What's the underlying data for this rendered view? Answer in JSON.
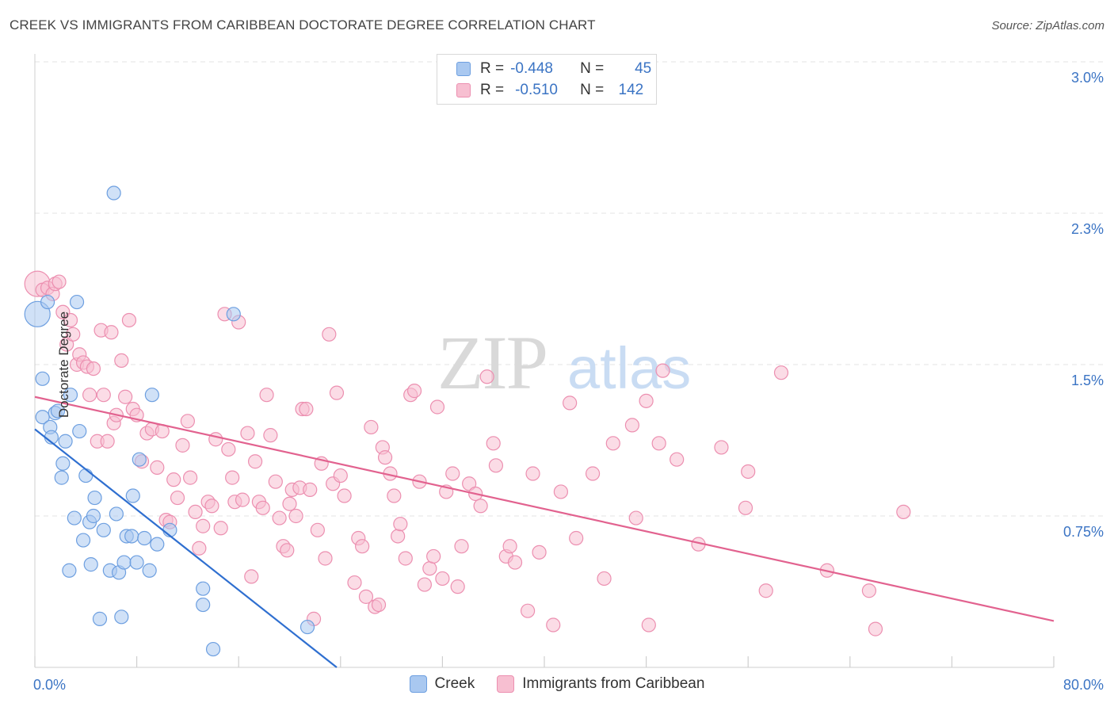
{
  "title": "CREEK VS IMMIGRANTS FROM CARIBBEAN DOCTORATE DEGREE CORRELATION CHART",
  "source": "Source: ZipAtlas.com",
  "watermark": {
    "zip": "ZIP",
    "atlas": "atlas"
  },
  "legend": {
    "r_label": "R =",
    "n_label": "N =",
    "creek": {
      "r": "-0.448",
      "n": "45"
    },
    "caribbean": {
      "r": "-0.510",
      "n": "142"
    }
  },
  "colors": {
    "creek_fill": "#a9c8f0",
    "creek_stroke": "#6d9fe0",
    "creek_line": "#2f6fd0",
    "carib_fill": "#f7bfd1",
    "carib_stroke": "#ec8fb0",
    "carib_line": "#e2628f",
    "tick_label": "#3b74c4",
    "grid": "#e3e3e3"
  },
  "chart_data": {
    "type": "scatter",
    "title": "CREEK VS IMMIGRANTS FROM CARIBBEAN DOCTORATE DEGREE CORRELATION CHART",
    "xlabel": "",
    "ylabel": "Doctorate Degree",
    "xlim": [
      0,
      80
    ],
    "ylim": [
      0,
      3.0
    ],
    "x_tick_labels": [
      "0.0%",
      "80.0%"
    ],
    "y_ticks": [
      0.75,
      1.5,
      2.25,
      3.0
    ],
    "y_tick_labels": [
      "0.75%",
      "1.5%",
      "2.3%",
      "3.0%"
    ],
    "grid": "dashed horizontal",
    "legend_placement": "top-center",
    "series": [
      {
        "name": "Creek",
        "r": -0.448,
        "n": 45,
        "trend": {
          "x": [
            0,
            23.7
          ],
          "y": [
            1.18,
            0.0
          ]
        },
        "points": [
          [
            0.2,
            1.75
          ],
          [
            0.6,
            1.43
          ],
          [
            0.6,
            1.24
          ],
          [
            1.0,
            1.81
          ],
          [
            1.2,
            1.19
          ],
          [
            1.3,
            1.14
          ],
          [
            1.6,
            1.26
          ],
          [
            1.8,
            1.27
          ],
          [
            2.1,
            0.94
          ],
          [
            2.2,
            1.01
          ],
          [
            2.4,
            1.12
          ],
          [
            2.7,
            0.48
          ],
          [
            2.8,
            1.35
          ],
          [
            3.1,
            0.74
          ],
          [
            3.3,
            1.81
          ],
          [
            3.5,
            1.17
          ],
          [
            3.8,
            0.63
          ],
          [
            4.0,
            0.95
          ],
          [
            4.3,
            0.72
          ],
          [
            4.4,
            0.51
          ],
          [
            4.6,
            0.75
          ],
          [
            4.7,
            0.84
          ],
          [
            5.1,
            0.24
          ],
          [
            5.4,
            0.68
          ],
          [
            5.9,
            0.48
          ],
          [
            6.2,
            2.35
          ],
          [
            6.4,
            0.76
          ],
          [
            6.6,
            0.47
          ],
          [
            6.8,
            0.25
          ],
          [
            7.0,
            0.52
          ],
          [
            7.2,
            0.65
          ],
          [
            7.6,
            0.65
          ],
          [
            7.7,
            0.85
          ],
          [
            8.0,
            0.52
          ],
          [
            8.2,
            1.03
          ],
          [
            8.6,
            0.64
          ],
          [
            9.0,
            0.48
          ],
          [
            9.2,
            1.35
          ],
          [
            9.6,
            0.61
          ],
          [
            10.6,
            0.68
          ],
          [
            13.2,
            0.31
          ],
          [
            13.2,
            0.39
          ],
          [
            14.0,
            0.09
          ],
          [
            15.6,
            1.75
          ],
          [
            21.4,
            0.2
          ]
        ]
      },
      {
        "name": "Immigrants from Caribbean",
        "r": -0.51,
        "n": 142,
        "trend": {
          "x": [
            0,
            80
          ],
          "y": [
            1.34,
            0.23
          ]
        },
        "points": [
          [
            0.2,
            1.9
          ],
          [
            0.6,
            1.87
          ],
          [
            1.0,
            1.88
          ],
          [
            1.4,
            1.85
          ],
          [
            1.6,
            1.9
          ],
          [
            1.9,
            1.91
          ],
          [
            2.2,
            1.76
          ],
          [
            2.5,
            1.6
          ],
          [
            2.8,
            1.72
          ],
          [
            3.0,
            1.65
          ],
          [
            3.3,
            1.5
          ],
          [
            3.5,
            1.55
          ],
          [
            3.8,
            1.51
          ],
          [
            4.1,
            1.49
          ],
          [
            4.3,
            1.35
          ],
          [
            4.6,
            1.48
          ],
          [
            4.9,
            1.12
          ],
          [
            5.2,
            1.67
          ],
          [
            5.4,
            1.35
          ],
          [
            5.7,
            1.12
          ],
          [
            6.0,
            1.66
          ],
          [
            6.2,
            1.21
          ],
          [
            6.4,
            1.25
          ],
          [
            6.8,
            1.52
          ],
          [
            7.1,
            1.34
          ],
          [
            7.4,
            1.72
          ],
          [
            7.7,
            1.28
          ],
          [
            8.0,
            1.25
          ],
          [
            8.4,
            1.02
          ],
          [
            8.8,
            1.16
          ],
          [
            9.2,
            1.18
          ],
          [
            9.6,
            0.99
          ],
          [
            10.0,
            1.17
          ],
          [
            10.3,
            0.73
          ],
          [
            10.6,
            0.72
          ],
          [
            10.9,
            0.93
          ],
          [
            11.2,
            0.84
          ],
          [
            11.6,
            1.1
          ],
          [
            12.0,
            1.22
          ],
          [
            12.2,
            0.94
          ],
          [
            12.6,
            0.77
          ],
          [
            12.9,
            0.59
          ],
          [
            13.2,
            0.7
          ],
          [
            13.6,
            0.82
          ],
          [
            13.9,
            0.8
          ],
          [
            14.2,
            1.13
          ],
          [
            14.6,
            0.69
          ],
          [
            14.9,
            1.75
          ],
          [
            15.2,
            1.08
          ],
          [
            15.5,
            0.94
          ],
          [
            15.7,
            0.82
          ],
          [
            16.0,
            1.71
          ],
          [
            16.3,
            0.83
          ],
          [
            16.7,
            1.16
          ],
          [
            17.0,
            0.45
          ],
          [
            17.3,
            1.02
          ],
          [
            17.6,
            0.82
          ],
          [
            17.9,
            0.79
          ],
          [
            18.2,
            1.35
          ],
          [
            18.5,
            1.15
          ],
          [
            18.9,
            0.92
          ],
          [
            19.2,
            0.74
          ],
          [
            19.5,
            0.6
          ],
          [
            19.8,
            0.58
          ],
          [
            20.0,
            0.81
          ],
          [
            20.2,
            0.88
          ],
          [
            20.5,
            0.75
          ],
          [
            20.8,
            0.89
          ],
          [
            21.0,
            1.28
          ],
          [
            21.3,
            1.28
          ],
          [
            21.6,
            0.88
          ],
          [
            21.9,
            0.24
          ],
          [
            22.2,
            0.68
          ],
          [
            22.5,
            1.01
          ],
          [
            22.8,
            0.54
          ],
          [
            23.1,
            1.65
          ],
          [
            23.4,
            0.91
          ],
          [
            23.7,
            1.36
          ],
          [
            24.0,
            0.95
          ],
          [
            24.3,
            0.85
          ],
          [
            25.1,
            0.42
          ],
          [
            25.4,
            0.64
          ],
          [
            25.7,
            0.6
          ],
          [
            26.0,
            0.35
          ],
          [
            26.4,
            1.19
          ],
          [
            26.7,
            0.3
          ],
          [
            27.0,
            0.31
          ],
          [
            27.3,
            1.09
          ],
          [
            27.5,
            1.04
          ],
          [
            27.9,
            0.96
          ],
          [
            28.2,
            0.85
          ],
          [
            28.5,
            0.65
          ],
          [
            28.7,
            0.71
          ],
          [
            29.1,
            0.54
          ],
          [
            29.5,
            1.35
          ],
          [
            29.8,
            1.37
          ],
          [
            30.2,
            0.92
          ],
          [
            30.6,
            0.41
          ],
          [
            31.0,
            0.49
          ],
          [
            31.3,
            0.55
          ],
          [
            31.6,
            1.29
          ],
          [
            32.0,
            0.44
          ],
          [
            32.3,
            0.87
          ],
          [
            32.8,
            0.96
          ],
          [
            33.2,
            0.4
          ],
          [
            33.5,
            0.6
          ],
          [
            34.1,
            0.91
          ],
          [
            34.6,
            0.86
          ],
          [
            35.0,
            0.8
          ],
          [
            35.5,
            1.44
          ],
          [
            36.0,
            1.11
          ],
          [
            36.2,
            1.0
          ],
          [
            37.0,
            0.55
          ],
          [
            37.3,
            0.6
          ],
          [
            37.7,
            0.52
          ],
          [
            38.7,
            0.28
          ],
          [
            39.1,
            0.96
          ],
          [
            39.6,
            0.57
          ],
          [
            40.7,
            0.21
          ],
          [
            41.3,
            0.87
          ],
          [
            42.0,
            1.31
          ],
          [
            42.5,
            0.64
          ],
          [
            43.8,
            0.96
          ],
          [
            44.7,
            0.44
          ],
          [
            45.4,
            1.11
          ],
          [
            46.9,
            1.2
          ],
          [
            47.2,
            0.74
          ],
          [
            48.0,
            1.32
          ],
          [
            48.2,
            0.21
          ],
          [
            49.0,
            1.11
          ],
          [
            49.3,
            1.47
          ],
          [
            50.4,
            1.03
          ],
          [
            52.1,
            0.61
          ],
          [
            53.9,
            1.09
          ],
          [
            55.8,
            0.79
          ],
          [
            56.0,
            0.97
          ],
          [
            57.4,
            0.38
          ],
          [
            58.6,
            1.46
          ],
          [
            62.2,
            0.48
          ],
          [
            65.5,
            0.38
          ],
          [
            66.0,
            0.19
          ],
          [
            68.2,
            0.77
          ]
        ]
      }
    ]
  }
}
